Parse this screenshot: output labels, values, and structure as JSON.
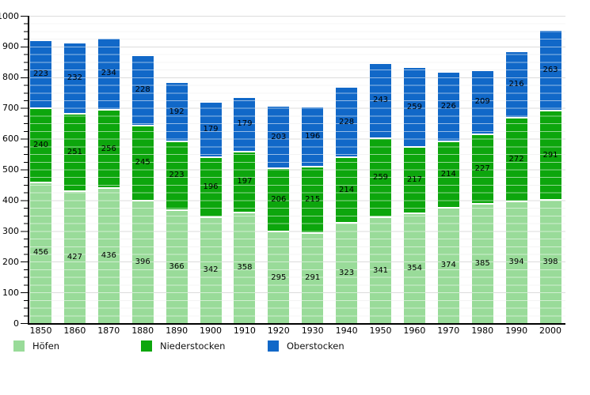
{
  "chart_data": {
    "type": "bar",
    "stacked": true,
    "title": "",
    "xlabel": "",
    "ylabel": "",
    "ylim": [
      0,
      1000
    ],
    "y_ticks": [
      0,
      100,
      200,
      300,
      400,
      500,
      600,
      700,
      800,
      900,
      1000
    ],
    "y_minor_step": 25,
    "grid": "horizontal, major and minor",
    "legend_position": "bottom",
    "categories": [
      "1850",
      "1860",
      "1870",
      "1880",
      "1890",
      "1900",
      "1910",
      "1920",
      "1930",
      "1940",
      "1950",
      "1960",
      "1970",
      "1980",
      "1990",
      "2000"
    ],
    "series": [
      {
        "name": "Höfen",
        "color": "#99db99",
        "values": [
          456,
          427,
          436,
          396,
          366,
          342,
          358,
          295,
          291,
          323,
          341,
          354,
          374,
          385,
          394,
          398
        ]
      },
      {
        "name": "Niederstocken",
        "color": "#0da60d",
        "values": [
          240,
          251,
          256,
          245,
          223,
          196,
          197,
          206,
          215,
          214,
          259,
          217,
          214,
          227,
          272,
          291
        ]
      },
      {
        "name": "Oberstocken",
        "color": "#1168c8",
        "values": [
          223,
          232,
          234,
          228,
          192,
          179,
          179,
          203,
          196,
          228,
          243,
          259,
          226,
          209,
          216,
          263
        ]
      }
    ],
    "totals": [
      919,
      910,
      926,
      869,
      781,
      717,
      734,
      704,
      702,
      765,
      843,
      830,
      814,
      821,
      882,
      952
    ],
    "colors": {
      "axis": "#000000",
      "grid_major": "#b2b2b2",
      "grid_minor": "#e7e7e7",
      "label_text": "#000000",
      "background": "#ffffff"
    }
  }
}
